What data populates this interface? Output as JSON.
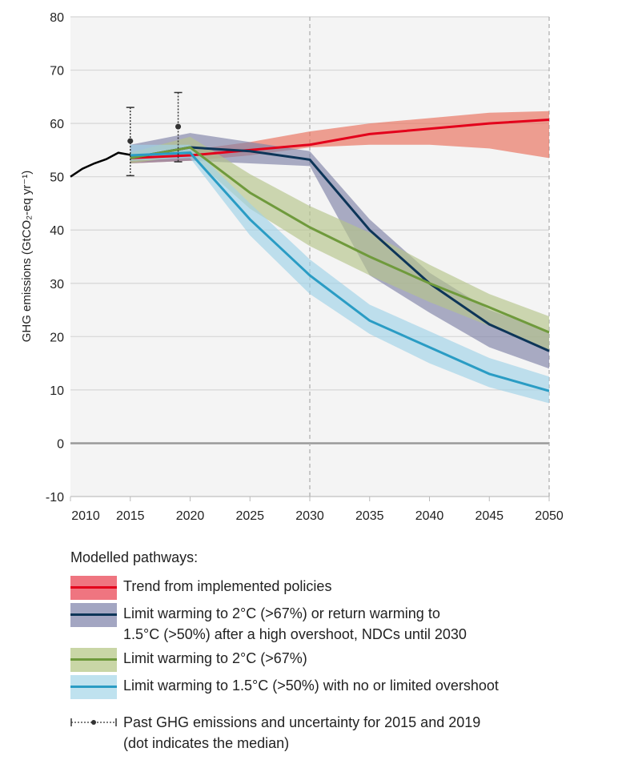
{
  "chart_data": {
    "type": "line",
    "ylabel": "GHG emissions (GtCO₂-eq yr⁻¹)",
    "xlim": [
      2010,
      2050
    ],
    "ylim": [
      -10,
      80
    ],
    "yticks": [
      -10,
      0,
      10,
      20,
      30,
      40,
      50,
      60,
      70,
      80
    ],
    "xticks": [
      2010,
      2015,
      2020,
      2025,
      2030,
      2035,
      2040,
      2045,
      2050
    ],
    "grid": true,
    "dashed_verticals": [
      2030,
      2050
    ],
    "historical": {
      "x": [
        2010,
        2011,
        2012,
        2013,
        2014,
        2015
      ],
      "y": [
        50,
        51.5,
        52.5,
        53.3,
        54.5,
        54.1
      ],
      "color": "#000000"
    },
    "uncertainty": [
      {
        "year": 2015,
        "low": 50.2,
        "median": 56.7,
        "high": 63
      },
      {
        "year": 2019,
        "low": 52.8,
        "median": 59.4,
        "high": 65.8
      }
    ],
    "x": [
      2015,
      2020,
      2025,
      2030,
      2035,
      2040,
      2045,
      2050
    ],
    "series": [
      {
        "name": "Trend from implemented policies",
        "line_color": "#e3001b",
        "band_color": "#ea6e5a",
        "median": [
          53.5,
          54,
          55,
          56,
          58,
          59,
          60,
          60.7
        ],
        "upper": [
          54.2,
          55,
          56.5,
          58.5,
          60,
          61,
          62,
          62.3
        ],
        "lower": [
          52.5,
          53,
          54,
          55.5,
          56,
          56,
          55.3,
          53.5
        ]
      },
      {
        "name": "Limit warming to 2°C (>67%) or return warming to 1.5°C (>50%) after a high overshoot, NDCs until 2030",
        "line_color": "#0d3558",
        "band_color": "#7f82a8",
        "median": [
          53.5,
          55.5,
          54.8,
          53.2,
          40,
          30,
          22.3,
          17.3
        ],
        "upper": [
          56,
          58.2,
          56.5,
          54.8,
          42,
          32,
          25,
          21
        ],
        "lower": [
          52.5,
          53,
          52.5,
          52,
          31.5,
          24.5,
          18,
          14
        ]
      },
      {
        "name": "Limit warming to 2°C (>67%)",
        "line_color": "#6f9a3c",
        "band_color": "#b5c58a",
        "median": [
          53.5,
          55.5,
          47,
          40.5,
          35,
          30,
          25.5,
          20.8
        ],
        "upper": [
          54.5,
          57.5,
          50.5,
          44.5,
          39.5,
          33.5,
          28,
          23.8
        ],
        "lower": [
          52.5,
          54,
          44,
          37,
          31.5,
          26.5,
          22,
          17.5
        ]
      },
      {
        "name": "Limit warming to 1.5°C (>50%) with no or limited overshoot",
        "line_color": "#2a9cc4",
        "band_color": "#9fd3e8",
        "median": [
          54,
          54.5,
          42,
          31.5,
          23,
          18,
          13,
          9.8
        ],
        "upper": [
          56,
          56,
          45,
          34.5,
          26,
          21,
          16,
          12.5
        ],
        "lower": [
          53,
          53.5,
          39,
          28,
          20.5,
          15,
          10.5,
          7.5
        ]
      }
    ]
  },
  "legend": {
    "title": "Modelled pathways:",
    "items": [
      {
        "label": "Trend from implemented policies",
        "band": "#ef7580",
        "line": "#e3001b"
      },
      {
        "label": "Limit warming to 2°C (>67%) or return warming to",
        "label2": "1.5°C (>50%) after a high overshoot, NDCs until 2030",
        "band": "#a3a6c2",
        "line": "#0d3558"
      },
      {
        "label": "Limit warming to 2°C (>67%)",
        "band": "#c9d6a6",
        "line": "#6f9a3c"
      },
      {
        "label": "Limit warming to 1.5°C (>50%) with no or limited overshoot",
        "band": "#bfe2ef",
        "line": "#2a9cc4"
      }
    ],
    "past_label": "Past GHG emissions and uncertainty for 2015 and 2019",
    "past_label2": "(dot indicates the median)"
  }
}
